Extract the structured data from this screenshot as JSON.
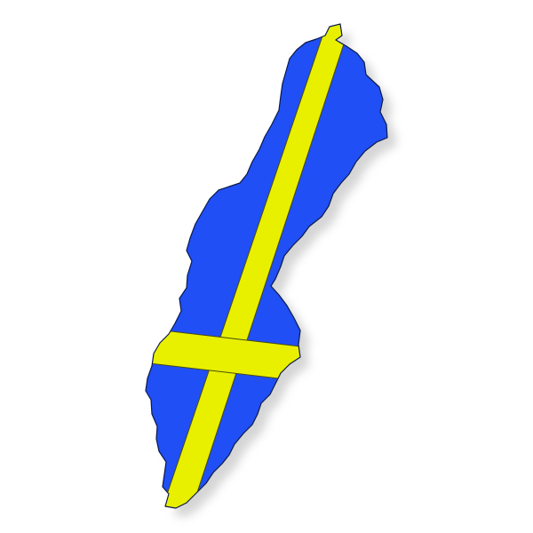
{
  "map": {
    "country": "Sweden",
    "style": "flag-filled country silhouette with drop shadow",
    "colors": {
      "background": "#ffffff",
      "country_fill": "#1f4ff5",
      "outline": "#0d1a4a",
      "cross": "#e8f000",
      "cross_outline": "#4a4a10",
      "shadow": "#c8c8c8"
    }
  }
}
